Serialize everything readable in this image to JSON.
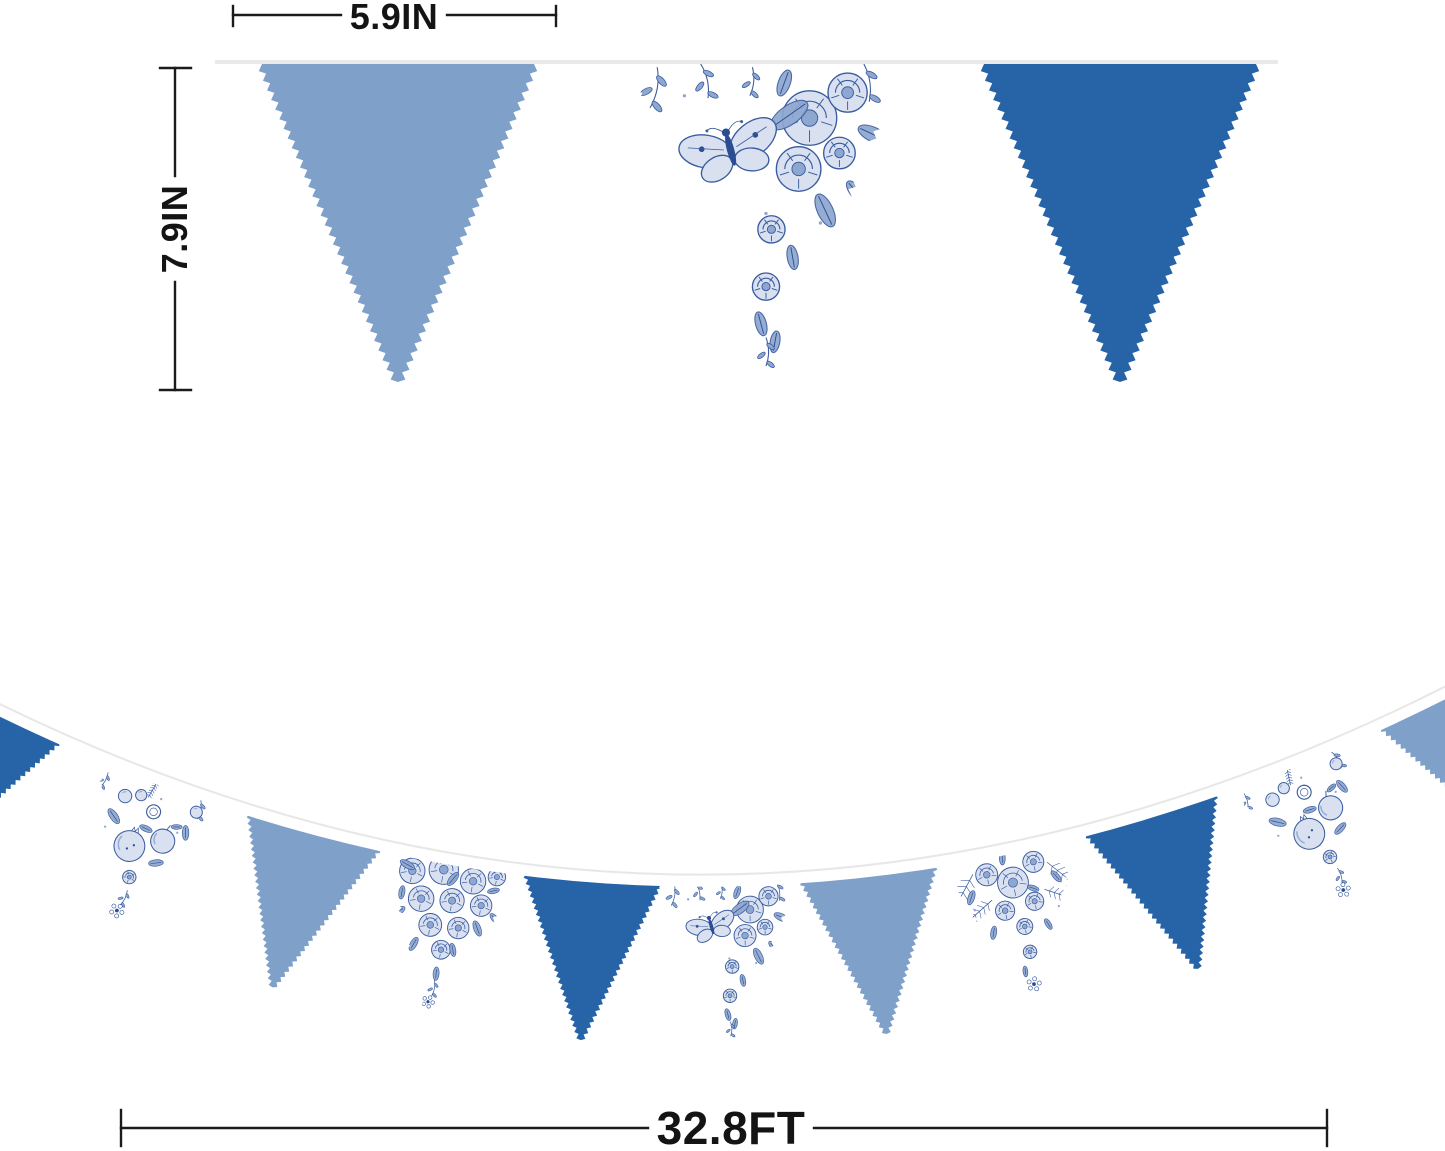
{
  "image": {
    "description": "Blue chinoiserie toile pennant bunting banner - product dimension diagram",
    "background": "#FFFFFF"
  },
  "dimensions": {
    "flag_width": "5.9IN",
    "flag_height": "7.9IN",
    "total_length": "32.8FT"
  },
  "palette": {
    "solid_light_blue": "#7FA0C9",
    "solid_dark_blue": "#2763A7",
    "toile_blue": "#3A5C9F",
    "toile_deep_blue": "#2C4D92",
    "toile_wash_blue": "#8EA7D0",
    "toile_light_blue": "#D9E1F1",
    "string_gray": "#E9E9E9",
    "dimension_color": "#1B1B1B"
  },
  "top_banner": {
    "flags": [
      {
        "style": "solid-light"
      },
      {
        "style": "toile-butterfly-rose"
      },
      {
        "style": "solid-dark"
      }
    ]
  },
  "bottom_banner": {
    "flags": [
      {
        "style": "solid-dark"
      },
      {
        "style": "toile-fruit"
      },
      {
        "style": "solid-light"
      },
      {
        "style": "toile-rose"
      },
      {
        "style": "solid-dark"
      },
      {
        "style": "toile-butterfly-rose"
      },
      {
        "style": "solid-light"
      },
      {
        "style": "toile-bouquet"
      },
      {
        "style": "solid-dark"
      },
      {
        "style": "toile-fruit"
      },
      {
        "style": "solid-light"
      }
    ]
  }
}
